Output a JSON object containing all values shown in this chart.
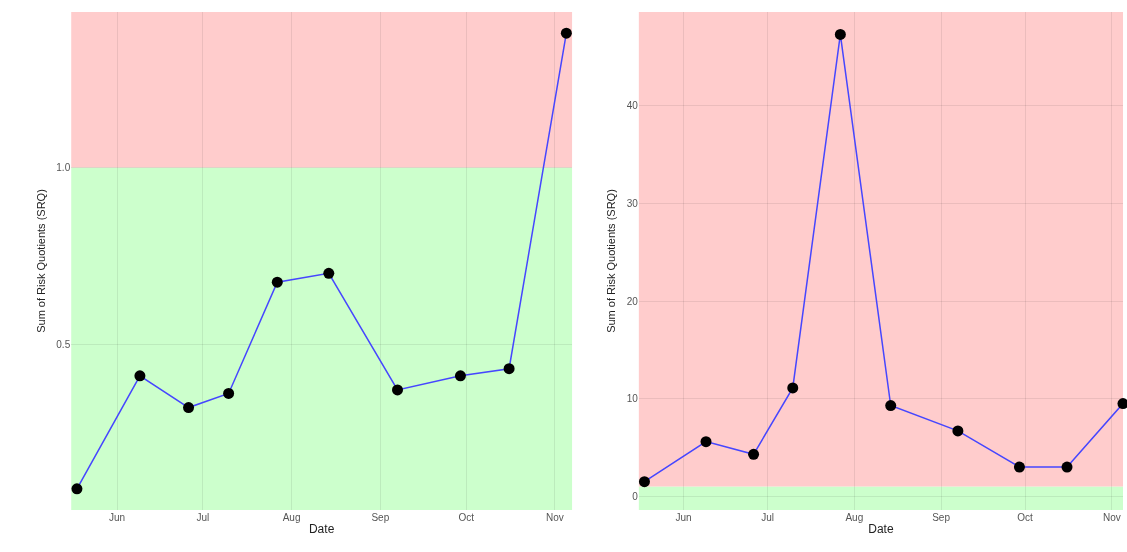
{
  "chart_data": [
    {
      "type": "line",
      "xlabel": "Date",
      "ylabel": "Sum of Risk Quotients (SRQ)",
      "x": [
        "--05-18",
        "--06-09",
        "--06-26",
        "--07-10",
        "--07-27",
        "--08-14",
        "--09-07",
        "--09-29",
        "--10-16",
        "--11-05"
      ],
      "series": [
        {
          "color": "#4646ff",
          "values": [
            0.09,
            0.41,
            0.32,
            0.36,
            0.675,
            0.7,
            0.37,
            0.41,
            0.43,
            1.38
          ]
        }
      ],
      "xlim": [
        "--05-16",
        "--11-07"
      ],
      "ylim": [
        0.03,
        1.44
      ],
      "xticks": [
        {
          "value": "--06-01",
          "label": "Jun"
        },
        {
          "value": "--07-01",
          "label": "Jul"
        },
        {
          "value": "--08-01",
          "label": "Aug"
        },
        {
          "value": "--09-01",
          "label": "Sep"
        },
        {
          "value": "--10-01",
          "label": "Oct"
        },
        {
          "value": "--11-01",
          "label": "Nov"
        }
      ],
      "yticks": [
        0.5,
        {
          "value": 1.0,
          "label": "1.0"
        }
      ],
      "bands": [
        {
          "axis": "y",
          "from": 0.03,
          "to": 1.0,
          "color": "#ccffcc"
        },
        {
          "axis": "y",
          "from": 1.0,
          "to": 1.44,
          "color": "#ffcccc"
        }
      ],
      "grid": true,
      "marker": "circle",
      "line_style": "solid"
    },
    {
      "type": "line",
      "xlabel": "Date",
      "ylabel": "Sum of Risk Quotients (SRQ)",
      "x": [
        "--05-18",
        "--06-09",
        "--06-26",
        "--07-10",
        "--07-27",
        "--08-14",
        "--09-07",
        "--09-29",
        "--10-16",
        "--11-05"
      ],
      "series": [
        {
          "color": "#4646ff",
          "values": [
            1.5,
            5.6,
            4.3,
            11.1,
            47.3,
            9.3,
            6.7,
            3.0,
            3.0,
            9.5
          ]
        }
      ],
      "xlim": [
        "--05-16",
        "--11-05"
      ],
      "ylim": [
        -1.4,
        49.6
      ],
      "xticks": [
        {
          "value": "--06-01",
          "label": "Jun"
        },
        {
          "value": "--07-01",
          "label": "Jul"
        },
        {
          "value": "--08-01",
          "label": "Aug"
        },
        {
          "value": "--09-01",
          "label": "Sep"
        },
        {
          "value": "--10-01",
          "label": "Oct"
        },
        {
          "value": "--11-01",
          "label": "Nov"
        }
      ],
      "yticks": [
        0,
        10,
        20,
        30,
        40
      ],
      "bands": [
        {
          "axis": "y",
          "from": -1.4,
          "to": 1.0,
          "color": "#ccffcc"
        },
        {
          "axis": "y",
          "from": 1.0,
          "to": 49.6,
          "color": "#ffcccc"
        }
      ],
      "grid": true,
      "marker": "circle",
      "line_style": "solid"
    }
  ]
}
